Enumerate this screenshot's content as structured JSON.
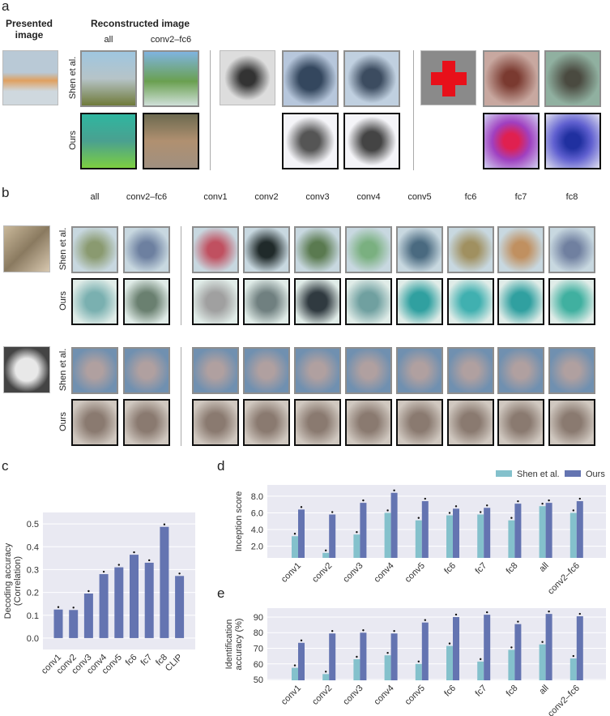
{
  "panels": {
    "a": "a",
    "b": "b",
    "c": "c",
    "d": "d",
    "e": "e"
  },
  "panel_a": {
    "presented": "Presented image",
    "reconstructed": "Reconstructed image",
    "col_all": "all",
    "col_c2fc6": "conv2–fc6",
    "row_shen": "Shen et al.",
    "row_ours": "Ours"
  },
  "panel_b": {
    "columns": [
      "all",
      "conv2–fc6",
      "conv1",
      "conv2",
      "conv3",
      "conv4",
      "conv5",
      "fc6",
      "fc7",
      "fc8"
    ],
    "row_shen": "Shen et al.",
    "row_ours": "Ours"
  },
  "colors": {
    "shen": "#84c1cc",
    "ours": "#6474b1",
    "bg": "#e9e9f2"
  },
  "chart_data": [
    {
      "type": "bar",
      "title": "",
      "ylabel": "Decoding accuracy (Correlation)",
      "ylabel_lines": [
        "Decoding accuracy",
        "(Correlation)"
      ],
      "categories": [
        "conv1",
        "conv2",
        "conv3",
        "conv4",
        "conv5",
        "fc6",
        "fc7",
        "fc8",
        "CLIP"
      ],
      "values": [
        0.125,
        0.123,
        0.195,
        0.28,
        0.31,
        0.365,
        0.33,
        0.487,
        0.272
      ],
      "ylim": [
        -0.05,
        0.55
      ],
      "yticks": [
        "0.0",
        "0.1",
        "0.2",
        "0.3",
        "0.4",
        "0.5"
      ],
      "grid": true
    },
    {
      "type": "bar",
      "ylabel": "Inception score",
      "categories": [
        "conv1",
        "conv2",
        "conv3",
        "conv4",
        "conv5",
        "fc6",
        "fc7",
        "fc8",
        "all",
        "conv2–fc6"
      ],
      "series": [
        {
          "name": "Shen et al.",
          "values": [
            3.2,
            1.2,
            3.4,
            6.0,
            5.1,
            5.7,
            5.8,
            5.1,
            6.8,
            6.0
          ]
        },
        {
          "name": "Ours",
          "values": [
            6.4,
            5.8,
            7.2,
            8.4,
            7.4,
            6.5,
            6.6,
            7.1,
            7.2,
            7.4
          ]
        }
      ],
      "ylim": [
        0.6,
        9.35
      ],
      "yticks": [
        "2.0",
        "4.0",
        "6.0",
        "8.0"
      ],
      "legend": "top-right",
      "grid": true
    },
    {
      "type": "bar",
      "ylabel": "Identification accuracy (%)",
      "ylabel_lines": [
        "Identification",
        "accuracy (%)"
      ],
      "categories": [
        "conv1",
        "conv2",
        "conv3",
        "conv4",
        "conv5",
        "fc6",
        "fc7",
        "fc8",
        "all",
        "conv2–fc6"
      ],
      "series": [
        {
          "name": "Shen et al.",
          "values": [
            57.5,
            53.5,
            63,
            65.5,
            60,
            71.5,
            61.5,
            69,
            72.5,
            63.5
          ]
        },
        {
          "name": "Ours",
          "values": [
            73.5,
            79.5,
            80,
            79.5,
            86.5,
            90,
            91.5,
            85.5,
            92,
            90.5
          ]
        }
      ],
      "ylim": [
        49.5,
        95.7
      ],
      "yticks": [
        "50",
        "60",
        "70",
        "80",
        "90"
      ],
      "grid": true
    }
  ]
}
